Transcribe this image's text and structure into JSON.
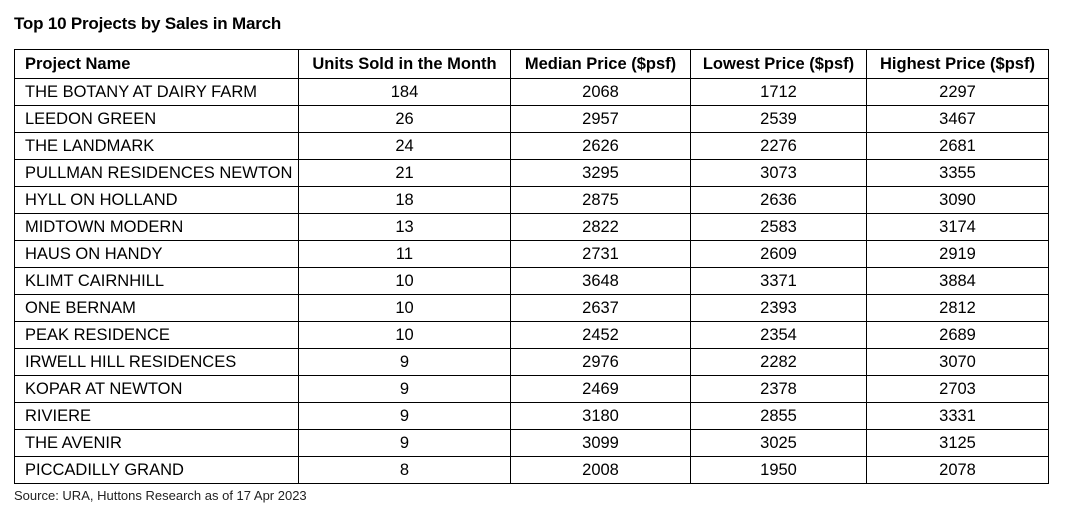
{
  "title": "Top 10 Projects by Sales in March",
  "columns": [
    "Project Name",
    "Units Sold in the Month",
    "Median Price ($psf)",
    "Lowest Price ($psf)",
    "Highest Price ($psf)"
  ],
  "rows": [
    [
      "THE BOTANY AT DAIRY FARM",
      "184",
      "2068",
      "1712",
      "2297"
    ],
    [
      "LEEDON GREEN",
      "26",
      "2957",
      "2539",
      "3467"
    ],
    [
      "THE LANDMARK",
      "24",
      "2626",
      "2276",
      "2681"
    ],
    [
      "PULLMAN RESIDENCES NEWTON",
      "21",
      "3295",
      "3073",
      "3355"
    ],
    [
      "HYLL ON HOLLAND",
      "18",
      "2875",
      "2636",
      "3090"
    ],
    [
      "MIDTOWN MODERN",
      "13",
      "2822",
      "2583",
      "3174"
    ],
    [
      "HAUS ON HANDY",
      "11",
      "2731",
      "2609",
      "2919"
    ],
    [
      "KLIMT CAIRNHILL",
      "10",
      "3648",
      "3371",
      "3884"
    ],
    [
      "ONE BERNAM",
      "10",
      "2637",
      "2393",
      "2812"
    ],
    [
      "PEAK RESIDENCE",
      "10",
      "2452",
      "2354",
      "2689"
    ],
    [
      "IRWELL HILL RESIDENCES",
      "9",
      "2976",
      "2282",
      "3070"
    ],
    [
      "KOPAR AT NEWTON",
      "9",
      "2469",
      "2378",
      "2703"
    ],
    [
      "RIVIERE",
      "9",
      "3180",
      "2855",
      "3331"
    ],
    [
      "THE AVENIR",
      "9",
      "3099",
      "3025",
      "3125"
    ],
    [
      "PICCADILLY GRAND",
      "8",
      "2008",
      "1950",
      "2078"
    ]
  ],
  "source": "Source: URA, Huttons Research as of 17 Apr 2023"
}
